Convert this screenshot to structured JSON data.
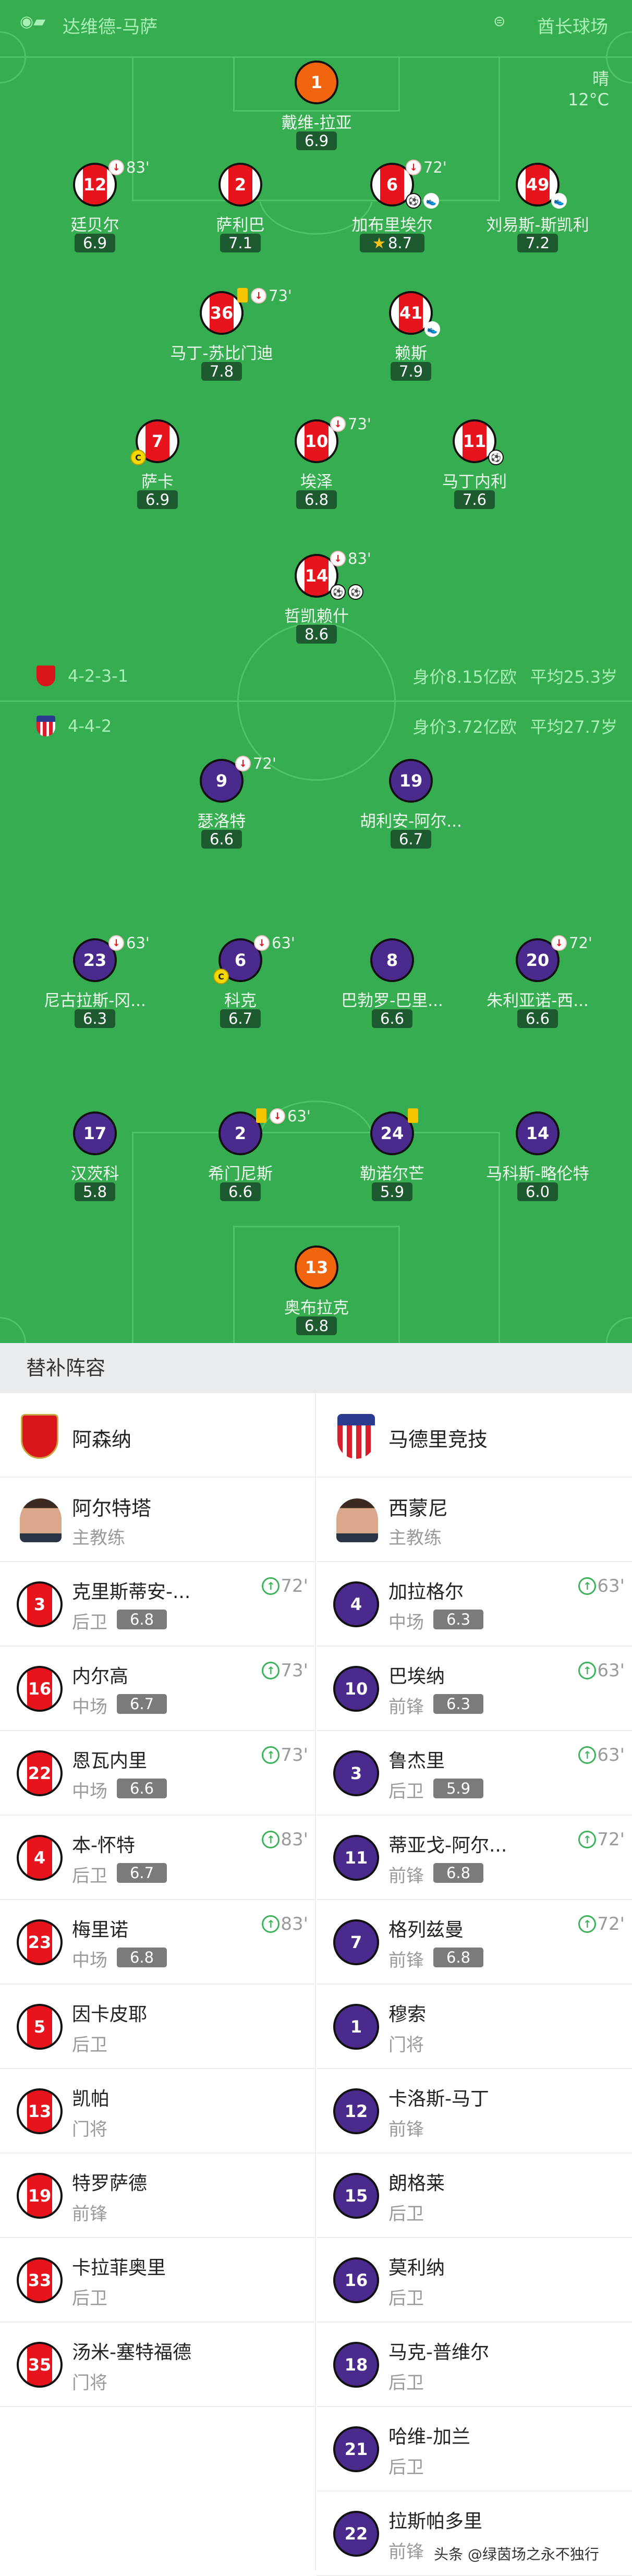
{
  "header": {
    "referee_icon": "whistle-icon",
    "referee": "达维德-马萨",
    "stadium_icon": "stadium-icon",
    "stadium": "酋长球场"
  },
  "weather": {
    "condition": "晴",
    "temperature": "12°C"
  },
  "colors": {
    "pitch": "#37ad51",
    "home": "#e8141d",
    "away": "#4b2a8e",
    "goalkeeper": "#f2650f",
    "rating_badge": "#1e5a2f"
  },
  "home": {
    "formation": "4-2-3-1",
    "value": "身价8.15亿欧",
    "avg_age": "平均25.3岁",
    "rows": [
      [
        {
          "num": "1",
          "name": "戴维-拉亚",
          "rating": "6.9",
          "gk": true
        }
      ],
      [
        {
          "num": "12",
          "name": "廷贝尔",
          "rating": "6.9",
          "sub_off": "83'"
        },
        {
          "num": "2",
          "name": "萨利巴",
          "rating": "7.1"
        },
        {
          "num": "6",
          "name": "加布里埃尔",
          "rating": "8.7",
          "sub_off": "72'",
          "goals": 1,
          "assists": 1,
          "motm": true
        },
        {
          "num": "49",
          "name": "刘易斯-斯凯利",
          "rating": "7.2",
          "assists": 1
        }
      ],
      [
        {
          "num": "36",
          "name": "马丁-苏比门迪",
          "rating": "7.8",
          "yellow": true,
          "sub_off": "73'"
        },
        {
          "num": "41",
          "name": "赖斯",
          "rating": "7.9",
          "assists": 1
        }
      ],
      [
        {
          "num": "7",
          "name": "萨卡",
          "rating": "6.9",
          "captain": true
        },
        {
          "num": "10",
          "name": "埃泽",
          "rating": "6.8",
          "sub_off": "73'"
        },
        {
          "num": "11",
          "name": "马丁内利",
          "rating": "7.6",
          "goals": 1
        }
      ],
      [
        {
          "num": "14",
          "name": "哲凯赖什",
          "rating": "8.6",
          "sub_off": "83'",
          "goals": 2
        }
      ]
    ]
  },
  "away": {
    "formation": "4-4-2",
    "value": "身价3.72亿欧",
    "avg_age": "平均27.7岁",
    "rows": [
      [
        {
          "num": "9",
          "name": "瑟洛特",
          "rating": "6.6",
          "sub_off": "72'"
        },
        {
          "num": "19",
          "name": "胡利安-阿尔...",
          "rating": "6.7"
        }
      ],
      [
        {
          "num": "23",
          "name": "尼古拉斯-冈...",
          "rating": "6.3",
          "sub_off": "63'"
        },
        {
          "num": "6",
          "name": "科克",
          "rating": "6.7",
          "sub_off": "63'",
          "captain": true
        },
        {
          "num": "8",
          "name": "巴勃罗-巴里...",
          "rating": "6.6"
        },
        {
          "num": "20",
          "name": "朱利亚诺-西...",
          "rating": "6.6",
          "sub_off": "72'"
        }
      ],
      [
        {
          "num": "17",
          "name": "汉茨科",
          "rating": "5.8"
        },
        {
          "num": "2",
          "name": "希门尼斯",
          "rating": "6.6",
          "yellow": true,
          "sub_off": "63'"
        },
        {
          "num": "24",
          "name": "勒诺尔芒",
          "rating": "5.9",
          "yellow": true
        },
        {
          "num": "14",
          "name": "马科斯-略伦特",
          "rating": "6.0"
        }
      ],
      [
        {
          "num": "13",
          "name": "奥布拉克",
          "rating": "6.8",
          "gk": true
        }
      ]
    ]
  },
  "subs": {
    "title": "替补阵容",
    "home": {
      "team": "阿森纳",
      "coach": "阿尔特塔",
      "coach_role": "主教练",
      "players": [
        {
          "num": "3",
          "name": "克里斯蒂安-...",
          "pos": "后卫",
          "rating": "6.8",
          "in": "72'"
        },
        {
          "num": "16",
          "name": "内尔高",
          "pos": "中场",
          "rating": "6.7",
          "in": "73'"
        },
        {
          "num": "22",
          "name": "恩瓦内里",
          "pos": "中场",
          "rating": "6.6",
          "in": "73'"
        },
        {
          "num": "4",
          "name": "本-怀特",
          "pos": "后卫",
          "rating": "6.7",
          "in": "83'"
        },
        {
          "num": "23",
          "name": "梅里诺",
          "pos": "中场",
          "rating": "6.8",
          "in": "83'"
        },
        {
          "num": "5",
          "name": "因卡皮耶",
          "pos": "后卫"
        },
        {
          "num": "13",
          "name": "凯帕",
          "pos": "门将"
        },
        {
          "num": "19",
          "name": "特罗萨德",
          "pos": "前锋"
        },
        {
          "num": "33",
          "name": "卡拉菲奥里",
          "pos": "后卫"
        },
        {
          "num": "35",
          "name": "汤米-塞特福德",
          "pos": "门将"
        }
      ]
    },
    "away": {
      "team": "马德里竞技",
      "coach": "西蒙尼",
      "coach_role": "主教练",
      "players": [
        {
          "num": "4",
          "name": "加拉格尔",
          "pos": "中场",
          "rating": "6.3",
          "in": "63'"
        },
        {
          "num": "10",
          "name": "巴埃纳",
          "pos": "前锋",
          "rating": "6.3",
          "in": "63'"
        },
        {
          "num": "3",
          "name": "鲁杰里",
          "pos": "后卫",
          "rating": "5.9",
          "in": "63'"
        },
        {
          "num": "11",
          "name": "蒂亚戈-阿尔...",
          "pos": "前锋",
          "rating": "6.8",
          "in": "72'"
        },
        {
          "num": "7",
          "name": "格列兹曼",
          "pos": "前锋",
          "rating": "6.8",
          "in": "72'"
        },
        {
          "num": "1",
          "name": "穆索",
          "pos": "门将"
        },
        {
          "num": "12",
          "name": "卡洛斯-马丁",
          "pos": "前锋"
        },
        {
          "num": "15",
          "name": "朗格莱",
          "pos": "后卫"
        },
        {
          "num": "16",
          "name": "莫利纳",
          "pos": "后卫"
        },
        {
          "num": "18",
          "name": "马克-普维尔",
          "pos": "后卫"
        },
        {
          "num": "21",
          "name": "哈维-加兰",
          "pos": "后卫"
        },
        {
          "num": "22",
          "name": "拉斯帕多里",
          "pos": "前锋"
        }
      ]
    }
  },
  "watermark": "头条 @绿茵场之永不独行"
}
